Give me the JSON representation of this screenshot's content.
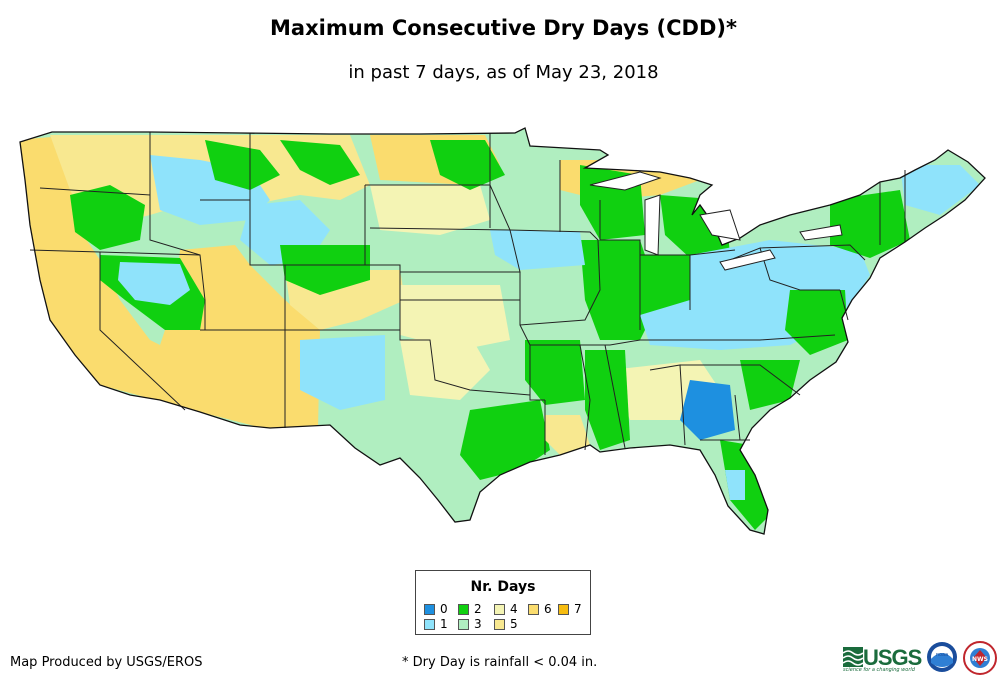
{
  "title": "Maximum Consecutive Dry Days (CDD)*",
  "subtitle": "in past 7 days, as of May 23, 2018",
  "legend": {
    "title": "Nr. Days",
    "items": [
      {
        "label": "0",
        "color": "#1e90e0"
      },
      {
        "label": "1",
        "color": "#8fe3fb"
      },
      {
        "label": "2",
        "color": "#10d010"
      },
      {
        "label": "3",
        "color": "#b0eec0"
      },
      {
        "label": "4",
        "color": "#f4f4b4"
      },
      {
        "label": "5",
        "color": "#f8e890"
      },
      {
        "label": "6",
        "color": "#fadc6e"
      },
      {
        "label": "7",
        "color": "#f6bc10"
      }
    ]
  },
  "credit": "Map Produced by USGS/EROS",
  "footnote": "* Dry Day is rainfall < 0.04 in.",
  "logos": {
    "usgs_text": "USGS",
    "usgs_tagline": "science for a changing world",
    "noaa_text": "noaa",
    "nws_text": "NWS"
  }
}
